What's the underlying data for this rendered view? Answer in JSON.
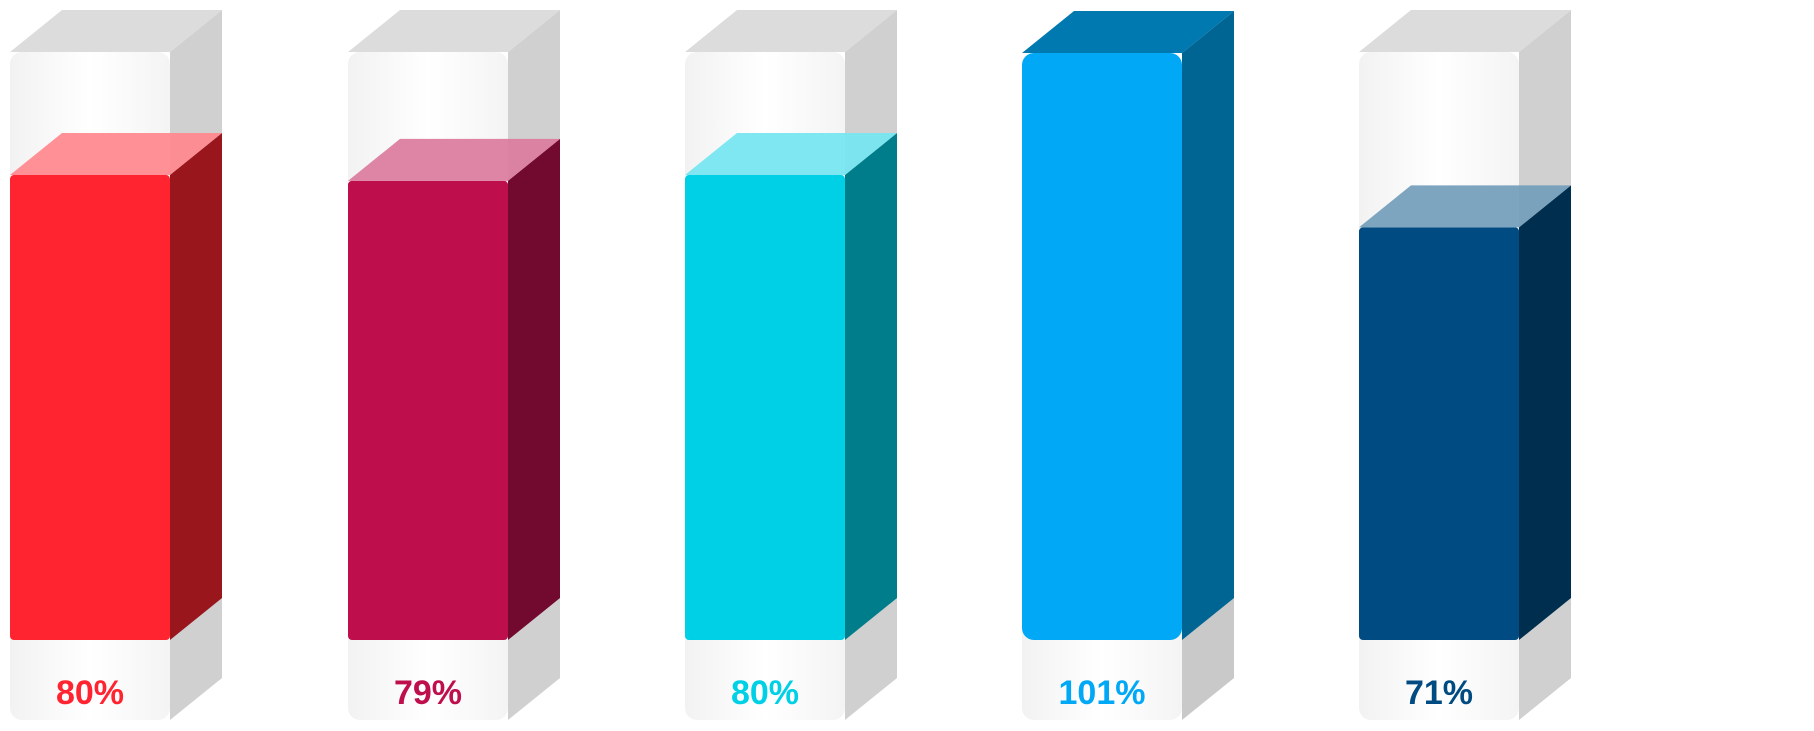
{
  "chart_data": {
    "type": "bar",
    "title": "",
    "xlabel": "",
    "ylabel": "",
    "ylim": [
      0,
      101
    ],
    "categories": [
      "",
      "",
      "",
      "",
      ""
    ],
    "values": [
      80,
      79,
      80,
      101,
      71
    ],
    "labels": [
      "80%",
      "79%",
      "80%",
      "101%",
      "71%"
    ],
    "colors": [
      "#FF2430",
      "#BE0F4C",
      "#00D0E6",
      "#00A8F5",
      "#004C82"
    ],
    "grid": false,
    "legend": "none"
  }
}
